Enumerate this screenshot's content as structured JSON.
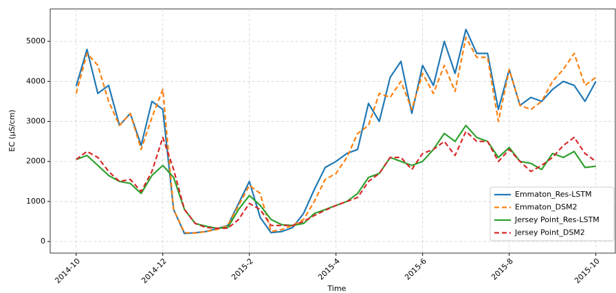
{
  "chart_data": {
    "type": "line",
    "xlabel": "Time",
    "ylabel": "EC (μS/cm)",
    "x": [
      0,
      0.25,
      0.5,
      0.75,
      1,
      1.25,
      1.5,
      1.75,
      2,
      2.25,
      2.5,
      2.75,
      3,
      3.25,
      3.5,
      3.75,
      4,
      4.25,
      4.5,
      4.75,
      5,
      5.25,
      5.5,
      5.75,
      6,
      6.25,
      6.5,
      6.75,
      7,
      7.25,
      7.5,
      7.75,
      8,
      8.25,
      8.5,
      8.75,
      9,
      9.25,
      9.5,
      9.75,
      10,
      10.25,
      10.5,
      10.75,
      11,
      11.25,
      11.5,
      11.75,
      12
    ],
    "series": [
      {
        "name": "Emmaton_Res-LSTM",
        "color": "#1f77b4",
        "style": "solid",
        "values": [
          3880,
          4800,
          3700,
          3900,
          2900,
          3200,
          2400,
          3500,
          3300,
          800,
          200,
          220,
          250,
          320,
          400,
          950,
          1500,
          600,
          220,
          250,
          350,
          700,
          1300,
          1850,
          2000,
          2200,
          2300,
          3450,
          3000,
          4100,
          4500,
          3200,
          4400,
          3900,
          5000,
          4200,
          5300,
          4700,
          4700,
          3300,
          4300,
          3400,
          3600,
          3500,
          3800,
          4000,
          3900,
          3500,
          4000
        ]
      },
      {
        "name": "Emmaton_DSM2",
        "color": "#ff7f0e",
        "style": "dashed",
        "values": [
          3700,
          4700,
          4400,
          3500,
          2900,
          3200,
          2300,
          3100,
          3800,
          800,
          220,
          210,
          250,
          300,
          400,
          900,
          1400,
          1200,
          250,
          300,
          400,
          550,
          1000,
          1550,
          1700,
          2100,
          2700,
          2900,
          3700,
          3600,
          4000,
          3300,
          4200,
          3700,
          4400,
          3750,
          5100,
          4600,
          4600,
          3000,
          4300,
          3400,
          3300,
          3500,
          4000,
          4300,
          4700,
          3900,
          4100
        ]
      },
      {
        "name": "Jersey Point_Res-LSTM",
        "color": "#2ca02c",
        "style": "solid",
        "values": [
          2050,
          2150,
          1900,
          1650,
          1500,
          1450,
          1200,
          1650,
          1900,
          1600,
          800,
          450,
          380,
          330,
          350,
          800,
          1150,
          900,
          550,
          420,
          400,
          450,
          700,
          800,
          900,
          1000,
          1200,
          1600,
          1700,
          2100,
          2000,
          1900,
          2000,
          2300,
          2700,
          2500,
          2900,
          2600,
          2500,
          2100,
          2350,
          2000,
          1950,
          1800,
          2200,
          2100,
          2250,
          1850,
          1880
        ]
      },
      {
        "name": "Jersey Point_DSM2",
        "color": "#d62728",
        "style": "dashed",
        "values": [
          2050,
          2250,
          2100,
          1750,
          1500,
          1550,
          1250,
          1750,
          2600,
          1800,
          800,
          450,
          350,
          330,
          330,
          550,
          950,
          800,
          400,
          400,
          400,
          500,
          650,
          780,
          900,
          1000,
          1100,
          1500,
          1700,
          2100,
          2100,
          1800,
          2200,
          2300,
          2500,
          2150,
          2750,
          2500,
          2500,
          2000,
          2300,
          2000,
          1750,
          1900,
          2100,
          2400,
          2600,
          2200,
          2000
        ]
      }
    ],
    "xlim": [
      -0.6,
      12.45
    ],
    "xticks": [
      {
        "value": 0,
        "label": "2014-10"
      },
      {
        "value": 2,
        "label": "2014-12"
      },
      {
        "value": 4,
        "label": "2015-2"
      },
      {
        "value": 6,
        "label": "2015-4"
      },
      {
        "value": 8,
        "label": "2015-6"
      },
      {
        "value": 10,
        "label": "2015-8"
      },
      {
        "value": 12,
        "label": "2015-10"
      }
    ],
    "ylim": [
      -290,
      5810
    ],
    "yticks": [
      0,
      1000,
      2000,
      3000,
      4000,
      5000
    ],
    "grid": true,
    "legend": "lower right"
  }
}
